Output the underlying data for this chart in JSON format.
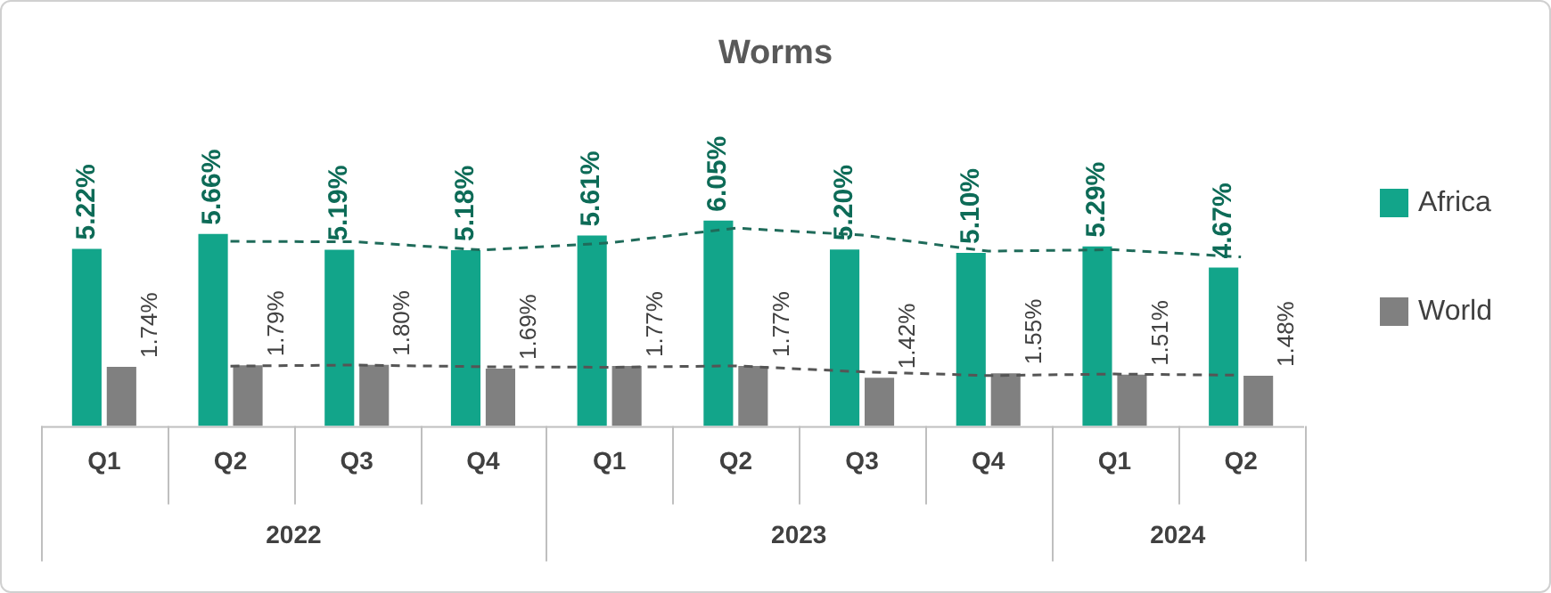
{
  "chart_data": {
    "type": "bar",
    "title": "Worms",
    "categories": [
      "Q1",
      "Q2",
      "Q3",
      "Q4",
      "Q1",
      "Q2",
      "Q3",
      "Q4",
      "Q1",
      "Q2"
    ],
    "annotations": [
      "2022",
      "2023",
      "2024"
    ],
    "series": [
      {
        "name": "Africa",
        "color": "#12a58a",
        "values": [
          5.22,
          5.66,
          5.19,
          5.18,
          5.61,
          6.05,
          5.2,
          5.1,
          5.29,
          4.67
        ],
        "value_labels": [
          "5.22%",
          "5.66%",
          "5.19%",
          "5.18%",
          "5.61%",
          "6.05%",
          "5.20%",
          "5.10%",
          "5.29%",
          "4.67%"
        ]
      },
      {
        "name": "World",
        "color": "#808080",
        "values": [
          1.74,
          1.79,
          1.8,
          1.69,
          1.77,
          1.77,
          1.42,
          1.55,
          1.51,
          1.48
        ],
        "value_labels": [
          "1.74%",
          "1.79%",
          "1.80%",
          "1.69%",
          "1.77%",
          "1.77%",
          "1.42%",
          "1.55%",
          "1.51%",
          "1.48%"
        ]
      },
      {
        "type": "line",
        "color": "#1f6b5a",
        "line_style": "dashed",
        "marker": "none",
        "values": [
          null,
          5.44,
          5.425,
          5.185,
          5.395,
          5.83,
          5.625,
          5.15,
          5.195,
          4.98
        ]
      },
      {
        "type": "line",
        "color": "#555555",
        "line_style": "dashed",
        "marker": "none",
        "values": [
          null,
          1.765,
          1.795,
          1.745,
          1.73,
          1.77,
          1.595,
          1.485,
          1.53,
          1.495
        ]
      }
    ],
    "legend": "right"
  }
}
